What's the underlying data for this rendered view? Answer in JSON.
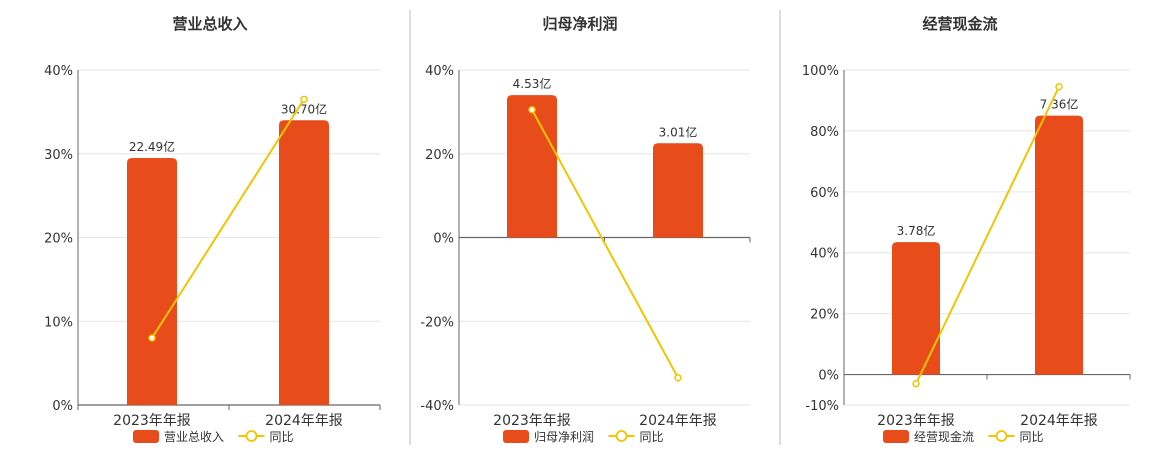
{
  "colors": {
    "bar": "#E84C1A",
    "line": "#F2C500",
    "axis": "#666666",
    "grid": "#E5E5E5",
    "divider": "#BBBBBB",
    "text": "#333333"
  },
  "icons": {
    "bar_legend": "filled-rounded-rect",
    "line_legend": "line-with-circle"
  },
  "chart_data": [
    {
      "type": "bar",
      "title": "营业总收入",
      "categories": [
        "2023年年报",
        "2024年年报"
      ],
      "series": [
        {
          "name": "营业总收入",
          "type": "bar",
          "values": [
            29.5,
            34.0
          ],
          "labels": [
            "22.49亿",
            "30.70亿"
          ]
        },
        {
          "name": "同比",
          "type": "line",
          "values": [
            8.0,
            36.5
          ]
        }
      ],
      "ylim": [
        0,
        40
      ],
      "yticks": [
        "0%",
        "10%",
        "20%",
        "30%",
        "40%"
      ],
      "ytick_values": [
        0,
        10,
        20,
        30,
        40
      ],
      "legend": [
        "营业总收入",
        "同比"
      ],
      "legend_position": "bottom",
      "grid": true
    },
    {
      "type": "bar",
      "title": "归母净利润",
      "categories": [
        "2023年年报",
        "2024年年报"
      ],
      "series": [
        {
          "name": "归母净利润",
          "type": "bar",
          "values": [
            34.0,
            22.5
          ],
          "labels": [
            "4.53亿",
            "3.01亿"
          ]
        },
        {
          "name": "同比",
          "type": "line",
          "values": [
            30.5,
            -33.5
          ]
        }
      ],
      "ylim": [
        -40,
        40
      ],
      "yticks": [
        "-40%",
        "-20%",
        "0%",
        "20%",
        "40%"
      ],
      "ytick_values": [
        -40,
        -20,
        0,
        20,
        40
      ],
      "legend": [
        "归母净利润",
        "同比"
      ],
      "legend_position": "bottom",
      "grid": true
    },
    {
      "type": "bar",
      "title": "经营现金流",
      "categories": [
        "2023年年报",
        "2024年年报"
      ],
      "series": [
        {
          "name": "经营现金流",
          "type": "bar",
          "values": [
            43.5,
            85.0
          ],
          "labels": [
            "3.78亿",
            "7.36亿"
          ]
        },
        {
          "name": "同比",
          "type": "line",
          "values": [
            -3.0,
            94.5
          ]
        }
      ],
      "ylim": [
        -10,
        100
      ],
      "yticks": [
        "-10%",
        "0%",
        "20%",
        "40%",
        "60%",
        "80%",
        "100%"
      ],
      "ytick_values": [
        -10,
        0,
        20,
        40,
        60,
        80,
        100
      ],
      "legend": [
        "经营现金流",
        "同比"
      ],
      "legend_position": "bottom",
      "grid": true
    }
  ]
}
